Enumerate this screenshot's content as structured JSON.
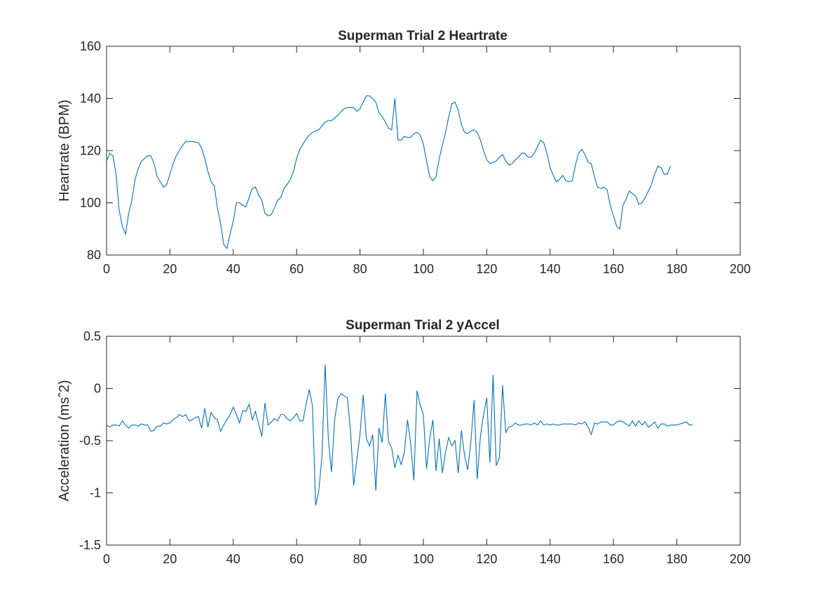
{
  "chart_data": [
    {
      "type": "line",
      "title": "Superman Trial 2 Heartrate",
      "xlabel": "",
      "ylabel": "Heartrate (BPM)",
      "xlim": [
        0,
        200
      ],
      "ylim": [
        80,
        160
      ],
      "xticks": [
        "0",
        "20",
        "40",
        "60",
        "80",
        "100",
        "120",
        "140",
        "160",
        "180",
        "200"
      ],
      "yticks": [
        "80",
        "100",
        "120",
        "140",
        "160"
      ],
      "grid": false,
      "line_color": "#0072BD",
      "x_start": 0,
      "x_step": 1,
      "values": [
        116,
        119,
        118,
        111,
        97,
        91,
        88,
        96,
        101,
        109,
        113,
        116,
        117,
        118,
        118,
        115,
        110,
        108,
        106,
        107,
        111,
        115,
        118,
        120,
        122,
        123.5,
        123.5,
        123.5,
        123.3,
        123,
        121,
        117,
        112,
        108,
        106.5,
        98,
        92,
        84,
        82.5,
        88,
        93,
        100,
        100,
        99,
        98.5,
        102,
        105.5,
        106,
        103,
        101,
        96,
        95,
        95.5,
        98,
        101,
        102,
        105.5,
        107,
        109,
        112,
        117,
        120.5,
        122.5,
        124.5,
        126,
        127,
        127.5,
        128,
        129.5,
        131,
        131.5,
        131.5,
        132.5,
        133.5,
        135,
        136,
        136.5,
        136.5,
        136.5,
        135,
        136,
        138.5,
        141,
        141,
        140,
        138.5,
        134.5,
        133,
        131,
        128.5,
        128,
        140,
        124,
        124,
        125.5,
        125,
        125,
        126.5,
        127,
        126,
        122.5,
        116,
        110,
        108.5,
        110,
        117,
        122,
        127,
        133,
        138,
        138.5,
        135.5,
        130,
        127,
        126.5,
        127.5,
        128,
        127,
        124,
        120,
        116.5,
        115,
        115.5,
        116,
        117.5,
        118.5,
        116,
        114.5,
        115,
        116.5,
        117.5,
        119,
        119,
        117.5,
        117.5,
        119,
        121.5,
        124,
        123,
        119,
        113.5,
        110.5,
        108,
        109,
        110.5,
        108.5,
        108,
        108.5,
        114.5,
        119,
        120.5,
        118.5,
        115.5,
        115,
        110,
        106,
        105.5,
        106,
        105,
        99,
        95,
        91,
        90,
        99,
        101.5,
        104.5,
        103.5,
        102.5,
        99.5,
        100,
        102,
        104.5,
        107,
        111,
        114,
        113.5,
        111,
        111,
        114
      ]
    },
    {
      "type": "line",
      "title": "Superman Trial 2 yAccel",
      "xlabel": "",
      "ylabel": "Acceleration (ms^2)",
      "xlim": [
        0,
        200
      ],
      "ylim": [
        -1.5,
        0.5
      ],
      "xticks": [
        "0",
        "20",
        "40",
        "60",
        "80",
        "100",
        "120",
        "140",
        "160",
        "180",
        "200"
      ],
      "yticks": [
        "-1.5",
        "-1",
        "-0.5",
        "0",
        "0.5"
      ],
      "grid": false,
      "line_color": "#0072BD",
      "x_start": 0,
      "x_step": 1,
      "values": [
        -0.35,
        -0.37,
        -0.35,
        -0.35,
        -0.36,
        -0.31,
        -0.35,
        -0.38,
        -0.35,
        -0.35,
        -0.36,
        -0.34,
        -0.35,
        -0.35,
        -0.41,
        -0.4,
        -0.36,
        -0.36,
        -0.33,
        -0.34,
        -0.33,
        -0.3,
        -0.28,
        -0.25,
        -0.27,
        -0.25,
        -0.31,
        -0.3,
        -0.28,
        -0.27,
        -0.38,
        -0.19,
        -0.37,
        -0.23,
        -0.28,
        -0.3,
        -0.41,
        -0.35,
        -0.3,
        -0.25,
        -0.18,
        -0.25,
        -0.33,
        -0.21,
        -0.22,
        -0.15,
        -0.3,
        -0.22,
        -0.34,
        -0.46,
        -0.14,
        -0.35,
        -0.32,
        -0.29,
        -0.31,
        -0.25,
        -0.25,
        -0.29,
        -0.31,
        -0.28,
        -0.24,
        -0.31,
        -0.31,
        -0.15,
        -0.01,
        -0.17,
        -1.12,
        -0.98,
        -0.65,
        0.23,
        -0.48,
        -0.8,
        -0.3,
        -0.1,
        -0.05,
        -0.07,
        -0.09,
        -0.4,
        -0.93,
        -0.68,
        -0.44,
        -0.06,
        -0.48,
        -0.55,
        -0.44,
        -0.98,
        -0.38,
        -0.52,
        -0.05,
        -0.51,
        -0.57,
        -0.76,
        -0.64,
        -0.73,
        -0.61,
        -0.3,
        -0.53,
        -0.88,
        -0.02,
        -0.16,
        -0.25,
        -0.77,
        -0.48,
        -0.3,
        -0.79,
        -0.48,
        -0.81,
        -0.61,
        -0.47,
        -0.55,
        -0.5,
        -0.81,
        -0.4,
        -0.64,
        -0.78,
        -0.51,
        -0.11,
        -0.87,
        -0.46,
        -0.25,
        -0.09,
        -0.71,
        0.13,
        -0.74,
        -0.66,
        0.03,
        -0.42,
        -0.37,
        -0.36,
        -0.33,
        -0.35,
        -0.35,
        -0.34,
        -0.34,
        -0.35,
        -0.33,
        -0.35,
        -0.31,
        -0.35,
        -0.34,
        -0.35,
        -0.34,
        -0.35,
        -0.35,
        -0.34,
        -0.34,
        -0.34,
        -0.34,
        -0.35,
        -0.33,
        -0.34,
        -0.32,
        -0.37,
        -0.44,
        -0.33,
        -0.34,
        -0.32,
        -0.32,
        -0.32,
        -0.35,
        -0.35,
        -0.32,
        -0.31,
        -0.32,
        -0.34,
        -0.36,
        -0.31,
        -0.36,
        -0.31,
        -0.35,
        -0.32,
        -0.37,
        -0.35,
        -0.32,
        -0.38,
        -0.34,
        -0.34,
        -0.36,
        -0.35,
        -0.35,
        -0.35,
        -0.34,
        -0.33,
        -0.32,
        -0.35,
        -0.35
      ]
    }
  ]
}
